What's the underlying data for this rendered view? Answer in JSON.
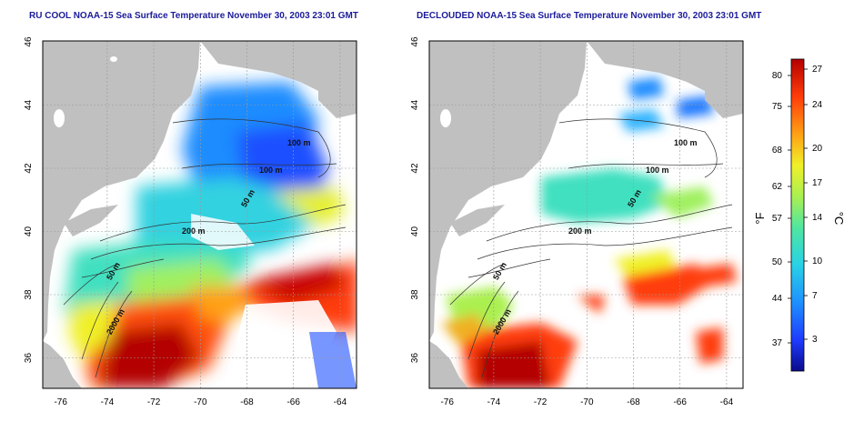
{
  "titles": {
    "left": "RU COOL NOAA-15 Sea Surface Temperature November 30, 2003 23:01 GMT",
    "right": "DECLOUDED NOAA-15 Sea Surface Temperature November 30, 2003 23:01 GMT"
  },
  "map": {
    "lon_ticks": [
      "-76",
      "-74",
      "-72",
      "-70",
      "-68",
      "-66",
      "-64"
    ],
    "lat_ticks": [
      "46",
      "44",
      "42",
      "40",
      "38",
      "36"
    ],
    "lon_range": [
      -77,
      -63
    ],
    "lat_range": [
      35,
      46
    ],
    "contour_labels_left": [
      "100 m",
      "100 m",
      "50 m",
      "200 m",
      "50 m",
      "2000 m"
    ],
    "contour_labels_right": [
      "100 m",
      "100 m",
      "50 m",
      "200 m",
      "50 m",
      "2000 m"
    ],
    "colors": {
      "land": "#c0c0c0",
      "cloud": "#ffffff",
      "grid": "#9a9a9a"
    }
  },
  "colorbar": {
    "fahrenheit_ticks": [
      "80",
      "75",
      "68",
      "62",
      "57",
      "50",
      "44",
      "37"
    ],
    "celsius_ticks": [
      "27",
      "24",
      "20",
      "17",
      "14",
      "10",
      "7",
      "3"
    ],
    "fahrenheit_unit": "°F",
    "celsius_unit": "°C",
    "colors": [
      "#0a0a8c",
      "#1e3cff",
      "#1e90ff",
      "#28d2e6",
      "#50e6a0",
      "#aaf050",
      "#f0f028",
      "#ffa014",
      "#ff3c0a",
      "#b40000"
    ]
  }
}
